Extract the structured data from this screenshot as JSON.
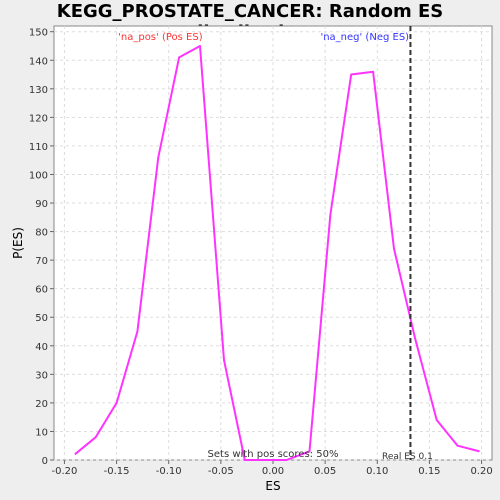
{
  "chart_data": {
    "type": "line",
    "title": "KEGG_PROSTATE_CANCER: Random ES distribution",
    "xlabel": "ES",
    "ylabel": "P(ES)",
    "xlim": [
      -0.21,
      0.21
    ],
    "ylim": [
      0,
      152
    ],
    "xticks": [
      -0.2,
      -0.15,
      -0.1,
      -0.05,
      0.0,
      0.05,
      0.1,
      0.15,
      0.2
    ],
    "xtick_labels": [
      "-0.20",
      "-0.15",
      "-0.10",
      "-0.05",
      "0.00",
      "0.05",
      "0.10",
      "0.15",
      "0.20"
    ],
    "yticks": [
      0,
      10,
      20,
      30,
      40,
      50,
      60,
      70,
      80,
      90,
      100,
      110,
      120,
      130,
      140,
      150
    ],
    "grid": true,
    "series": [
      {
        "color": "#ff33ff",
        "x": [
          -0.19,
          -0.17,
          -0.15,
          -0.13,
          -0.11,
          -0.09,
          -0.07,
          -0.047,
          -0.027,
          -0.007,
          0.013,
          0.035,
          0.055,
          0.075,
          0.096,
          0.116,
          0.136,
          0.157,
          0.177,
          0.198
        ],
        "y": [
          2,
          8,
          20,
          45,
          106,
          141,
          145,
          35,
          0,
          0,
          0,
          3,
          86,
          135,
          136,
          74,
          43,
          14,
          5,
          3
        ]
      }
    ],
    "real_es": 0.1318,
    "annotations": {
      "pos": "'na_pos' (Pos ES)",
      "neg": "'na_neg' (Neg ES)",
      "sets_pos": "Sets with pos scores: 50%",
      "real_es": "Real ES 0.1"
    },
    "colors": {
      "pos_label": "#ff3333",
      "neg_label": "#3333ff",
      "line": "#ff33ff",
      "real_es_line": "#333333",
      "grid": "#dddddd"
    }
  }
}
